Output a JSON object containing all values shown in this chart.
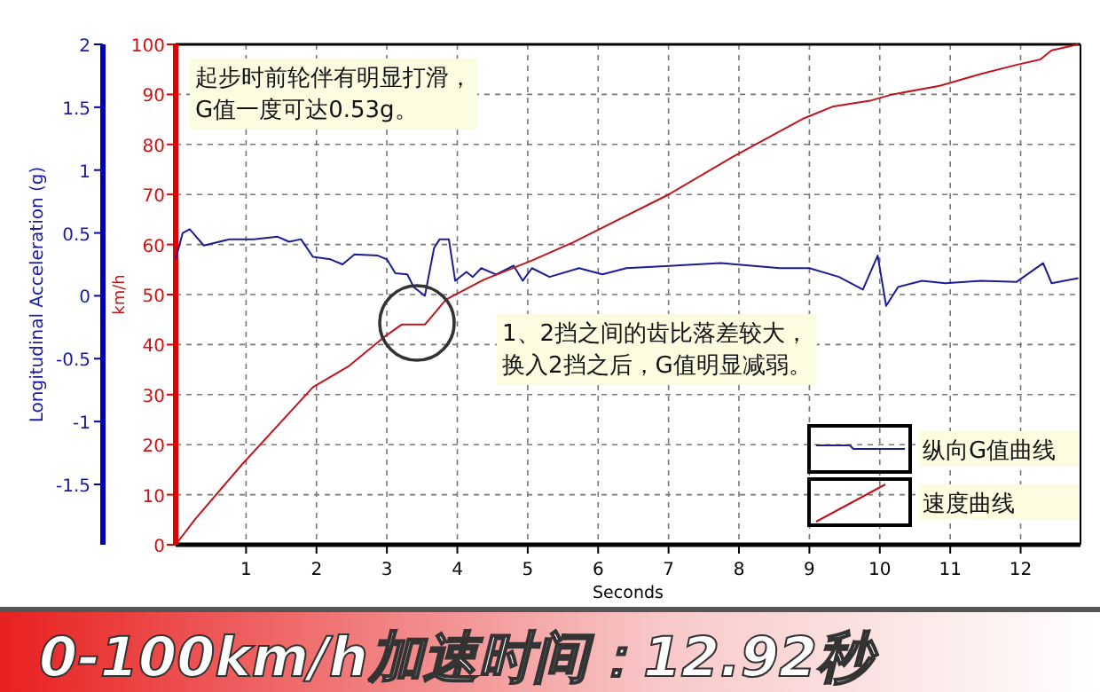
{
  "chart_data": {
    "type": "line",
    "title": "0-100km/h加速时间：12.92秒",
    "xlabel": "Seconds",
    "ylabel": "km/h",
    "y2label": "Longitudinal Acceleration (g)",
    "annotations": [
      "起步时前轮伴有明显打滑，G值一度可达0.53g。",
      "1、2挡之间的齿比落差较大，换入2挡之后，G值明显减弱。"
    ],
    "xlim": [
      0,
      12.85
    ],
    "xticks": [
      1,
      2,
      3,
      4,
      5,
      6,
      7,
      8,
      9,
      10,
      11,
      12
    ],
    "ylim": [
      0,
      100
    ],
    "yticks": [
      0,
      10,
      20,
      30,
      40,
      50,
      60,
      70,
      80,
      90,
      100
    ],
    "y2lim": [
      -1.98,
      2
    ],
    "y2ticks": [
      -1.5,
      -1,
      -0.5,
      0,
      0.5,
      1,
      1.5,
      2
    ],
    "grid": true,
    "legend": "bottom right",
    "series": [
      {
        "name": "纵向G值曲线",
        "color": "#1c1c96",
        "axis": "y2",
        "x": [
          0,
          0.1,
          0.2,
          0.4,
          0.77,
          1.11,
          1.45,
          1.61,
          1.78,
          1.95,
          2.2,
          2.37,
          2.54,
          2.87,
          3.0,
          3.12,
          3.29,
          3.38,
          3.54,
          3.67,
          3.75,
          3.88,
          3.97,
          4.13,
          4.22,
          4.34,
          4.55,
          4.8,
          4.93,
          5.06,
          5.31,
          5.73,
          6.06,
          6.4,
          7.07,
          7.74,
          8.58,
          9.0,
          9.42,
          9.76,
          9.97,
          10.09,
          10.26,
          10.6,
          10.93,
          11.44,
          11.94,
          12.32,
          12.44,
          12.82
        ],
        "values": [
          0.29,
          0.5,
          0.53,
          0.4,
          0.45,
          0.45,
          0.47,
          0.43,
          0.45,
          0.31,
          0.29,
          0.25,
          0.33,
          0.32,
          0.29,
          0.18,
          0.17,
          0.07,
          0.0,
          0.38,
          0.45,
          0.45,
          0.12,
          0.19,
          0.15,
          0.22,
          0.17,
          0.24,
          0.12,
          0.22,
          0.15,
          0.22,
          0.17,
          0.22,
          0.24,
          0.26,
          0.22,
          0.22,
          0.15,
          0.05,
          0.32,
          -0.08,
          0.07,
          0.12,
          0.1,
          0.12,
          0.11,
          0.26,
          0.1,
          0.14
        ]
      },
      {
        "name": "速度曲线",
        "color": "#c0141e",
        "x": [
          0,
          0.27,
          0.94,
          1.95,
          2.45,
          2.96,
          3.21,
          3.54,
          3.84,
          4.38,
          5.06,
          5.64,
          6.99,
          7.91,
          8.92,
          9.34,
          9.88,
          10.18,
          10.85,
          11.44,
          11.94,
          12.28,
          12.44,
          12.82
        ],
        "values": [
          0,
          5,
          16,
          31.5,
          35.6,
          41.5,
          44,
          44,
          49,
          53,
          56.8,
          60.4,
          69.9,
          77.5,
          85.2,
          87.6,
          88.8,
          90,
          91.7,
          94.1,
          95.9,
          97,
          98.8,
          100
        ]
      }
    ]
  }
}
